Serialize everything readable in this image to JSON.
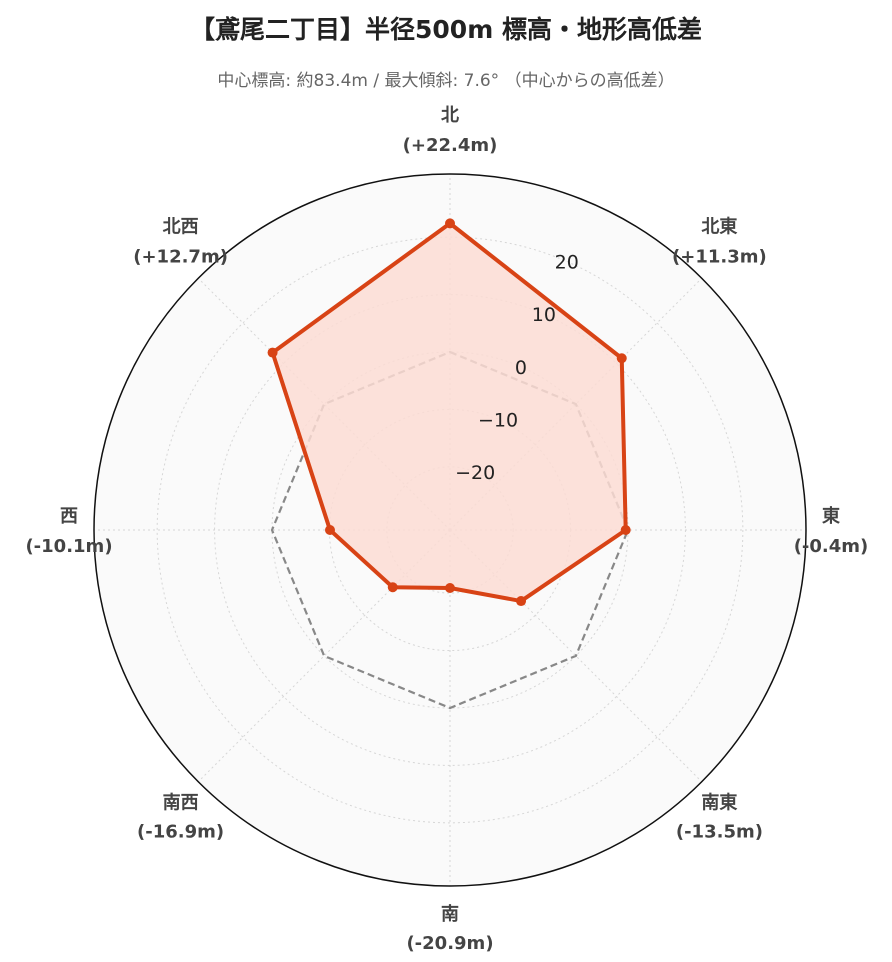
{
  "title": "【鳶尾二丁目】半径500m 標高・地形高低差",
  "subtitle": "中心標高: 約83.4m / 最大傾斜: 7.6° （中心からの高低差）",
  "chart_data": {
    "type": "radar",
    "categories": [
      "北",
      "北東",
      "東",
      "南東",
      "南",
      "南西",
      "西",
      "北西"
    ],
    "value_labels": [
      "(+22.4m)",
      "(+11.3m)",
      "(-0.4m)",
      "(-13.5m)",
      "(-20.9m)",
      "(-16.9m)",
      "(-10.1m)",
      "(+12.7m)"
    ],
    "series": [
      {
        "values": [
          22.4,
          11.3,
          -0.4,
          -13.5,
          -20.9,
          -16.9,
          -10.1,
          12.7
        ],
        "color": "#d84315",
        "fill": "#fcdcd3"
      }
    ],
    "reference_line": {
      "value": 0,
      "style": "dashed",
      "color": "#888888"
    },
    "radial_ticks": [
      -20,
      -10,
      0,
      10,
      20
    ],
    "radial_tick_labels": [
      "−20",
      "−10",
      "0",
      "10",
      "20"
    ],
    "rlim": [
      -31,
      31
    ],
    "grid": true,
    "background": "#fafafa"
  }
}
